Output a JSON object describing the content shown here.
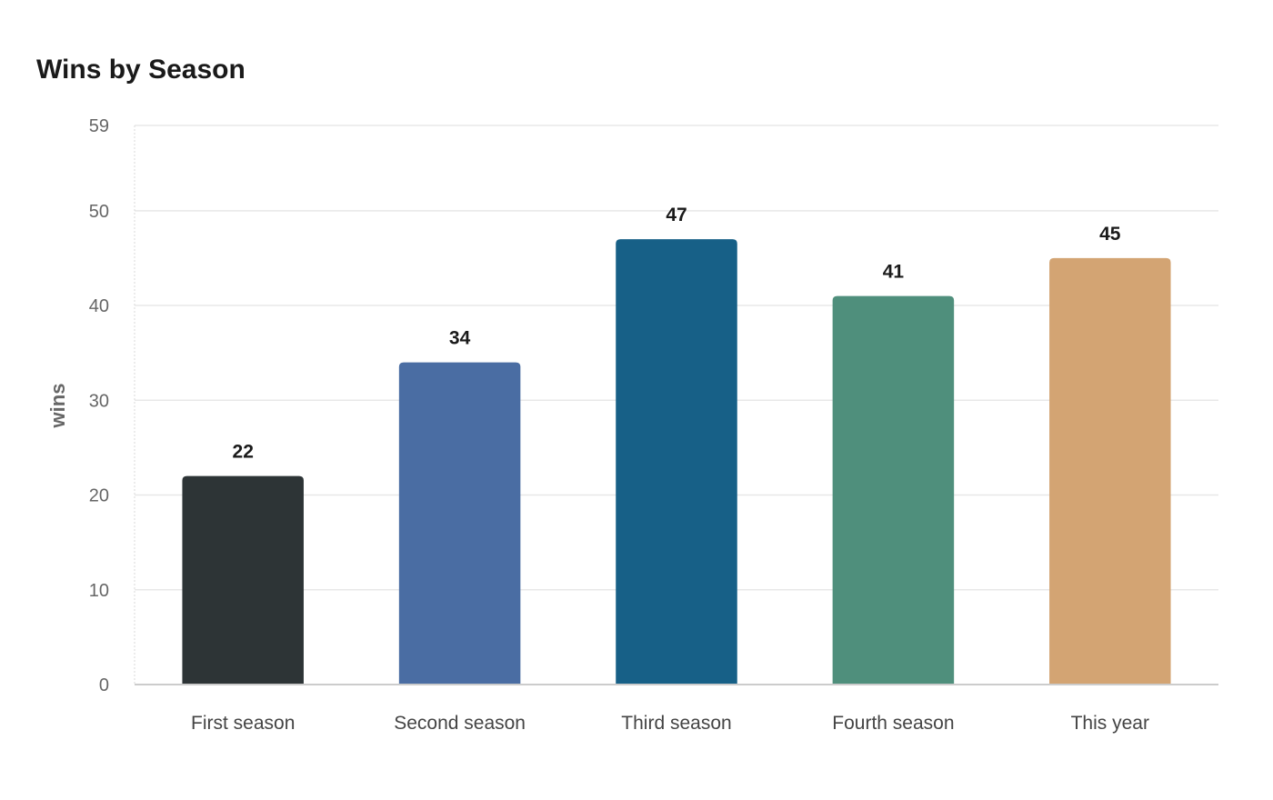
{
  "chart_data": {
    "type": "bar",
    "title": "Wins by Season",
    "xlabel": "",
    "ylabel": "wins",
    "categories": [
      "First season",
      "Second season",
      "Third season",
      "Fourth season",
      "This year"
    ],
    "values": [
      22,
      34,
      47,
      41,
      45
    ],
    "colors": [
      "#2d3436",
      "#4a6da3",
      "#176087",
      "#4f8f7c",
      "#d3a473"
    ],
    "ylim": [
      0,
      59
    ],
    "yticks": [
      0,
      10,
      20,
      30,
      40,
      50,
      59
    ],
    "grid": true,
    "data_labels": true
  }
}
